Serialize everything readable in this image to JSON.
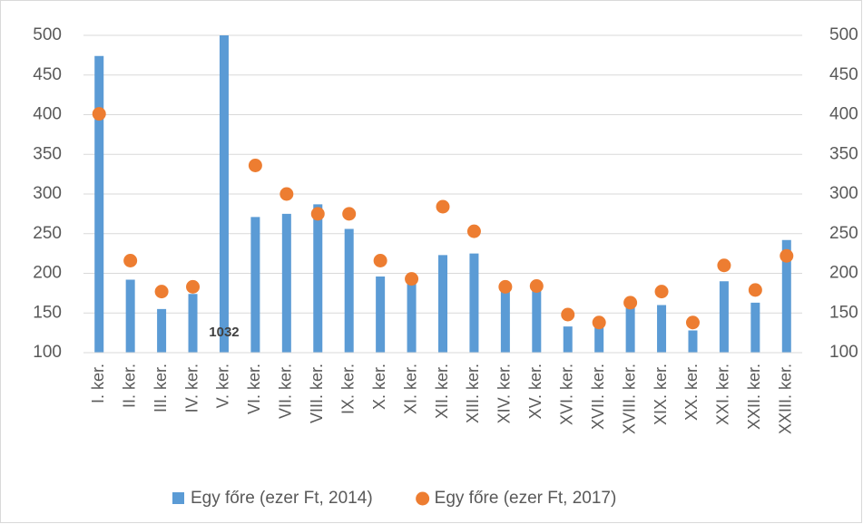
{
  "chart_data": {
    "type": "bar",
    "categories": [
      "I. ker.",
      "II. ker.",
      "III. ker.",
      "IV. ker.",
      "V. ker.",
      "VI. ker.",
      "VII. ker.",
      "VIII. ker.",
      "IX. ker.",
      "X. ker.",
      "XI. ker.",
      "XII. ker.",
      "XIII. ker.",
      "XIV. ker.",
      "XV. ker.",
      "XVI. ker.",
      "XVII. ker.",
      "XVIII. ker.",
      "XIX. ker.",
      "XX. ker.",
      "XXI. ker.",
      "XXII. ker.",
      "XXIII. ker."
    ],
    "series": [
      {
        "name": "Egy főre (ezer Ft, 2014)",
        "color": "#5b9bd5",
        "kind": "bar",
        "values": [
          474,
          192,
          155,
          174,
          1032,
          271,
          275,
          287,
          256,
          196,
          190,
          223,
          225,
          178,
          178,
          133,
          133,
          160,
          160,
          128,
          190,
          163,
          242
        ],
        "value_labels": [
          null,
          null,
          null,
          null,
          "1032",
          null,
          null,
          null,
          null,
          null,
          null,
          null,
          null,
          null,
          null,
          null,
          null,
          null,
          null,
          null,
          null,
          null,
          null
        ]
      },
      {
        "name": "Egy főre (ezer Ft, 2017)",
        "color": "#ed7d31",
        "kind": "dot",
        "values": [
          401,
          216,
          177,
          183,
          null,
          336,
          300,
          275,
          275,
          216,
          193,
          284,
          253,
          183,
          184,
          148,
          138,
          163,
          177,
          138,
          210,
          179,
          222
        ]
      }
    ],
    "ylim": [
      100,
      500
    ],
    "yticks": [
      100,
      150,
      200,
      250,
      300,
      350,
      400,
      450,
      500
    ],
    "y2lim": [
      100,
      500
    ],
    "y2ticks": [
      100,
      150,
      200,
      250,
      300,
      350,
      400,
      450,
      500
    ],
    "grid": true,
    "legend": "bottom"
  }
}
